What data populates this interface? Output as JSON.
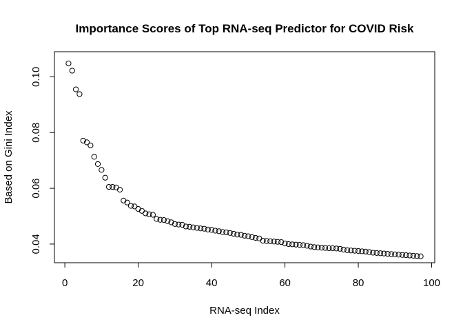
{
  "chart_data": {
    "type": "scatter",
    "title": "Importance Scores of Top RNA-seq Predictor for COVID Risk",
    "xlabel": "RNA-seq Index",
    "ylabel": "Based on Gini Index",
    "xlim": [
      -2.84,
      100.84
    ],
    "ylim": [
      0.0333,
      0.109
    ],
    "xticks": [
      0,
      20,
      40,
      60,
      80,
      100
    ],
    "xtick_labels": [
      "0",
      "20",
      "40",
      "60",
      "80",
      "100"
    ],
    "yticks": [
      0.04,
      0.06,
      0.08,
      0.1
    ],
    "ytick_labels": [
      "0.04",
      "0.06",
      "0.08",
      "0.10"
    ],
    "grid": false,
    "legend": "none",
    "marker": "open-circle",
    "x": [
      1,
      2,
      3,
      4,
      5,
      6,
      7,
      8,
      9,
      10,
      11,
      12,
      13,
      14,
      15,
      16,
      17,
      18,
      19,
      20,
      21,
      22,
      23,
      24,
      25,
      26,
      27,
      28,
      29,
      30,
      31,
      32,
      33,
      34,
      35,
      36,
      37,
      38,
      39,
      40,
      41,
      42,
      43,
      44,
      45,
      46,
      47,
      48,
      49,
      50,
      51,
      52,
      53,
      54,
      55,
      56,
      57,
      58,
      59,
      60,
      61,
      62,
      63,
      64,
      65,
      66,
      67,
      68,
      69,
      70,
      71,
      72,
      73,
      74,
      75,
      76,
      77,
      78,
      79,
      80,
      81,
      82,
      83,
      84,
      85,
      86,
      87,
      88,
      89,
      90,
      91,
      92,
      93,
      94,
      95,
      96,
      97
    ],
    "y": [
      0.1048,
      0.1022,
      0.0955,
      0.0938,
      0.0771,
      0.0765,
      0.0754,
      0.0713,
      0.0687,
      0.0666,
      0.0638,
      0.0605,
      0.0605,
      0.0603,
      0.0595,
      0.0556,
      0.0549,
      0.0537,
      0.0535,
      0.0526,
      0.0519,
      0.051,
      0.0507,
      0.0505,
      0.049,
      0.0487,
      0.0486,
      0.0482,
      0.0478,
      0.0472,
      0.047,
      0.0469,
      0.0463,
      0.0462,
      0.046,
      0.0458,
      0.0456,
      0.0455,
      0.0452,
      0.0451,
      0.0448,
      0.0446,
      0.0443,
      0.0442,
      0.044,
      0.0437,
      0.0434,
      0.0433,
      0.043,
      0.0428,
      0.0425,
      0.0422,
      0.042,
      0.0412,
      0.0411,
      0.041,
      0.0409,
      0.0408,
      0.0407,
      0.0402,
      0.04,
      0.0399,
      0.0398,
      0.0397,
      0.0396,
      0.0394,
      0.0391,
      0.0389,
      0.0388,
      0.0387,
      0.0386,
      0.0385,
      0.0385,
      0.0384,
      0.0383,
      0.038,
      0.0378,
      0.0377,
      0.0376,
      0.0375,
      0.0374,
      0.0373,
      0.0371,
      0.0369,
      0.0368,
      0.0367,
      0.0366,
      0.0365,
      0.0364,
      0.0363,
      0.0362,
      0.0361,
      0.036,
      0.0359,
      0.0358,
      0.0357,
      0.0356
    ]
  }
}
